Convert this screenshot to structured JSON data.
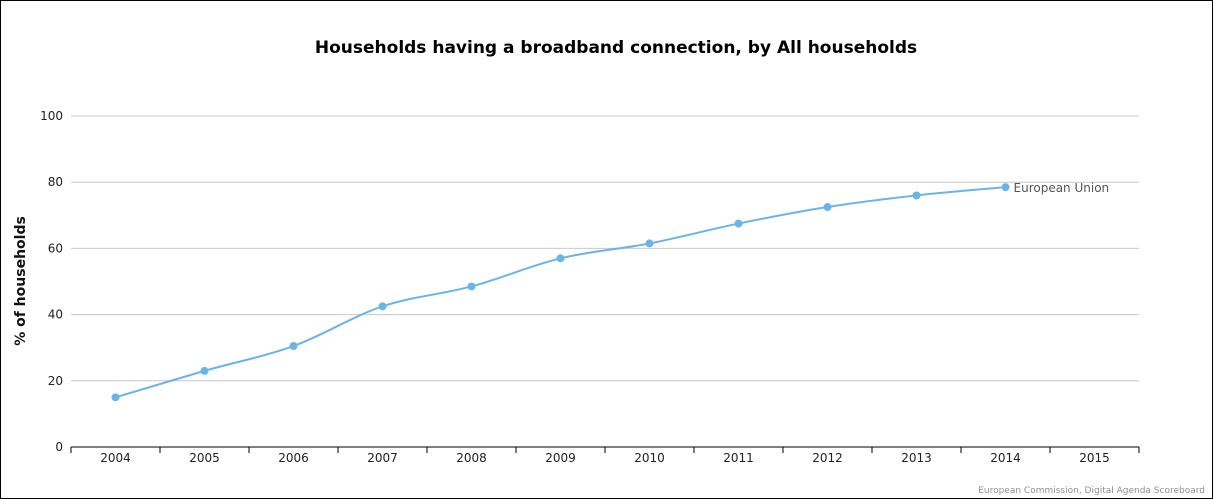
{
  "chart_data": {
    "type": "line",
    "title": "Households having a broadband connection, by All households",
    "ylabel": "% of households",
    "xlabel": "",
    "x_ticks": [
      "2004",
      "2005",
      "2006",
      "2007",
      "2008",
      "2009",
      "2010",
      "2011",
      "2012",
      "2013",
      "2014",
      "2015"
    ],
    "y_ticks": [
      "0",
      "20",
      "40",
      "60",
      "80",
      "100"
    ],
    "ylim": [
      0,
      100
    ],
    "xlim": [
      2004,
      2015
    ],
    "grid": true,
    "series": [
      {
        "name": "European Union",
        "color": "#6ab4e8",
        "x": [
          2004,
          2005,
          2006,
          2007,
          2008,
          2009,
          2010,
          2011,
          2012,
          2013,
          2014
        ],
        "values": [
          15,
          23,
          30.5,
          42.5,
          48.5,
          57,
          61.5,
          67.5,
          72.5,
          76,
          78.5
        ]
      }
    ],
    "credits": "European Commission, Digital Agenda Scoreboard"
  }
}
